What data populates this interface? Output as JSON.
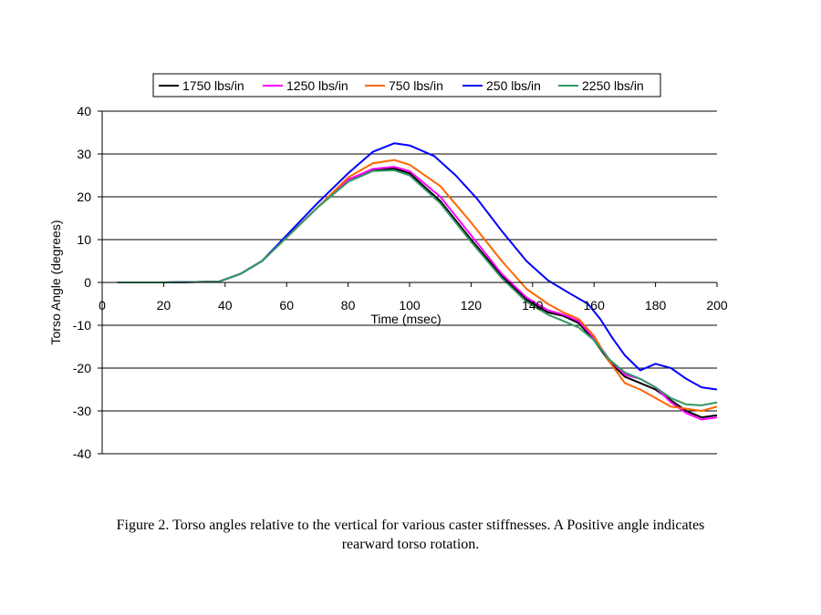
{
  "caption": {
    "line1": "Figure 2. Torso angles relative to the vertical for various caster stiffnesses. A Positive angle indicates",
    "line2": "rearward torso rotation."
  },
  "chart_data": {
    "type": "line",
    "xlabel": "Time (msec)",
    "ylabel": "Torso Angle (degrees)",
    "xlim": [
      0,
      200
    ],
    "ylim": [
      -40,
      40
    ],
    "xticks": [
      0,
      20,
      40,
      60,
      80,
      100,
      120,
      140,
      160,
      180,
      200
    ],
    "yticks": [
      40,
      30,
      20,
      10,
      0,
      -10,
      -20,
      -30,
      -40
    ],
    "grid": "horizontal",
    "legend_position": "top",
    "series": [
      {
        "name": "1750 lbs/in",
        "color": "#000000",
        "points": [
          [
            5,
            0
          ],
          [
            20,
            0
          ],
          [
            38,
            0.2
          ],
          [
            45,
            2
          ],
          [
            52,
            5
          ],
          [
            60,
            10.5
          ],
          [
            70,
            17.5
          ],
          [
            80,
            24
          ],
          [
            88,
            26.3
          ],
          [
            95,
            26.6
          ],
          [
            100,
            25.5
          ],
          [
            110,
            19
          ],
          [
            120,
            10
          ],
          [
            130,
            1.5
          ],
          [
            138,
            -4
          ],
          [
            145,
            -7
          ],
          [
            150,
            -7.8
          ],
          [
            155,
            -9.5
          ],
          [
            160,
            -13.5
          ],
          [
            165,
            -18.5
          ],
          [
            170,
            -22
          ],
          [
            175,
            -23.5
          ],
          [
            180,
            -25
          ],
          [
            185,
            -27.5
          ],
          [
            190,
            -30
          ],
          [
            195,
            -31.5
          ],
          [
            200,
            -31
          ]
        ]
      },
      {
        "name": "1250 lbs/in",
        "color": "#ff00ff",
        "points": [
          [
            5,
            0
          ],
          [
            20,
            0
          ],
          [
            38,
            0.2
          ],
          [
            45,
            2
          ],
          [
            52,
            5
          ],
          [
            60,
            10.5
          ],
          [
            70,
            17.5
          ],
          [
            80,
            24
          ],
          [
            88,
            26.5
          ],
          [
            95,
            27
          ],
          [
            100,
            26
          ],
          [
            110,
            20
          ],
          [
            120,
            11
          ],
          [
            130,
            2
          ],
          [
            138,
            -3.5
          ],
          [
            145,
            -6.5
          ],
          [
            150,
            -7.5
          ],
          [
            155,
            -9
          ],
          [
            160,
            -13
          ],
          [
            165,
            -18
          ],
          [
            170,
            -21.5
          ],
          [
            175,
            -22.5
          ],
          [
            180,
            -24.5
          ],
          [
            185,
            -28
          ],
          [
            190,
            -30.5
          ],
          [
            195,
            -32
          ],
          [
            200,
            -31.5
          ]
        ]
      },
      {
        "name": "750 lbs/in",
        "color": "#ff6600",
        "points": [
          [
            5,
            0
          ],
          [
            20,
            0
          ],
          [
            38,
            0.2
          ],
          [
            45,
            2
          ],
          [
            52,
            5
          ],
          [
            60,
            10.5
          ],
          [
            70,
            17.5
          ],
          [
            80,
            24.5
          ],
          [
            88,
            27.8
          ],
          [
            95,
            28.6
          ],
          [
            100,
            27.5
          ],
          [
            110,
            22.5
          ],
          [
            120,
            14
          ],
          [
            130,
            5
          ],
          [
            138,
            -1.5
          ],
          [
            145,
            -5
          ],
          [
            150,
            -7
          ],
          [
            155,
            -8.5
          ],
          [
            160,
            -12.5
          ],
          [
            165,
            -18.5
          ],
          [
            170,
            -23.5
          ],
          [
            175,
            -25
          ],
          [
            180,
            -27
          ],
          [
            185,
            -29
          ],
          [
            190,
            -29.5
          ],
          [
            195,
            -30
          ],
          [
            200,
            -29
          ]
        ]
      },
      {
        "name": "250 lbs/in",
        "color": "#0000ff",
        "points": [
          [
            5,
            0
          ],
          [
            20,
            0
          ],
          [
            38,
            0.2
          ],
          [
            45,
            2
          ],
          [
            52,
            5
          ],
          [
            60,
            11
          ],
          [
            70,
            18.5
          ],
          [
            80,
            25.5
          ],
          [
            88,
            30.5
          ],
          [
            95,
            32.5
          ],
          [
            100,
            32
          ],
          [
            108,
            29.5
          ],
          [
            115,
            25
          ],
          [
            122,
            19.5
          ],
          [
            130,
            12
          ],
          [
            138,
            5
          ],
          [
            145,
            0.5
          ],
          [
            152,
            -2.5
          ],
          [
            158,
            -5
          ],
          [
            162,
            -8.5
          ],
          [
            166,
            -13
          ],
          [
            170,
            -17
          ],
          [
            175,
            -20.5
          ],
          [
            180,
            -19
          ],
          [
            185,
            -20
          ],
          [
            190,
            -22.5
          ],
          [
            195,
            -24.5
          ],
          [
            200,
            -25
          ]
        ]
      },
      {
        "name": "2250 lbs/in",
        "color": "#339966",
        "points": [
          [
            5,
            0
          ],
          [
            20,
            0
          ],
          [
            38,
            0.2
          ],
          [
            45,
            2
          ],
          [
            52,
            5
          ],
          [
            60,
            10.5
          ],
          [
            70,
            17.5
          ],
          [
            80,
            23.5
          ],
          [
            88,
            26
          ],
          [
            95,
            26.2
          ],
          [
            100,
            25
          ],
          [
            110,
            18.5
          ],
          [
            120,
            9.5
          ],
          [
            130,
            1
          ],
          [
            138,
            -4.5
          ],
          [
            145,
            -7.5
          ],
          [
            150,
            -9
          ],
          [
            155,
            -10.5
          ],
          [
            160,
            -13.5
          ],
          [
            165,
            -18
          ],
          [
            170,
            -21
          ],
          [
            175,
            -22.5
          ],
          [
            180,
            -24.5
          ],
          [
            185,
            -27
          ],
          [
            190,
            -28.5
          ],
          [
            195,
            -28.7
          ],
          [
            200,
            -28
          ]
        ]
      }
    ]
  }
}
